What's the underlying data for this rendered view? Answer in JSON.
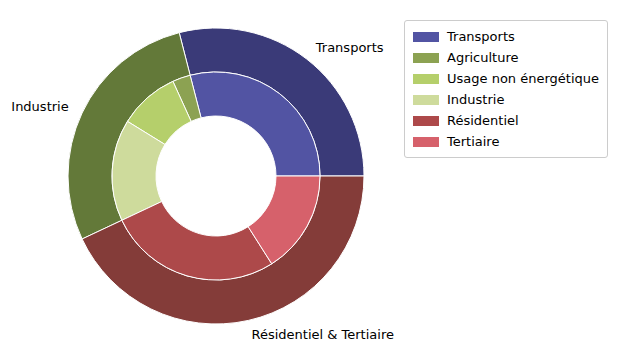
{
  "chart_data": {
    "type": "pie",
    "legend": "right",
    "rings": [
      {
        "categories": [
          "Transports",
          "Industrie",
          "Résidentiel & Tertiaire"
        ],
        "values": [
          29,
          28,
          43
        ],
        "colors": [
          "#3a3a78",
          "#637939",
          "#843c39"
        ]
      },
      {
        "categories": [
          "Transports",
          "Agriculture",
          "Usage non énergétique",
          "Industrie",
          "Résidentiel",
          "Tertiaire"
        ],
        "values": [
          29,
          2.8,
          9.4,
          15.8,
          27,
          16
        ],
        "colors": [
          "#5254a3",
          "#8ca252",
          "#b5cf6b",
          "#cedb9c",
          "#ad494a",
          "#d6616b"
        ]
      }
    ]
  }
}
